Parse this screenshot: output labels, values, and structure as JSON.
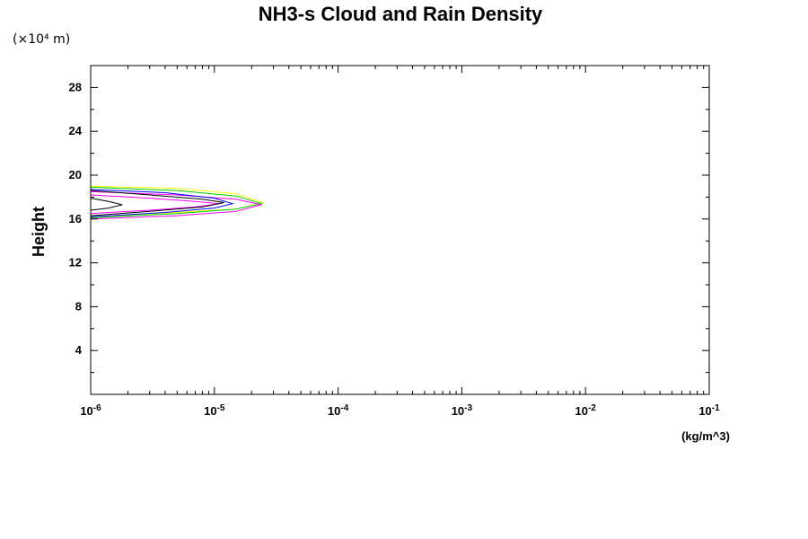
{
  "chart_data": {
    "type": "line",
    "title": "NH3-s Cloud and Rain Density",
    "y_scale_note": "(×10⁴ m)",
    "ylabel": "Height",
    "xlabel": "(kg/m^3)",
    "x_scale": "log",
    "xlim": [
      1e-06,
      0.1
    ],
    "ylim": [
      0,
      30
    ],
    "x_tick_labels": [
      {
        "base": "10",
        "exp": "-6"
      },
      {
        "base": "10",
        "exp": "-5"
      },
      {
        "base": "10",
        "exp": "-4"
      },
      {
        "base": "10",
        "exp": "-3"
      },
      {
        "base": "10",
        "exp": "-2"
      },
      {
        "base": "10",
        "exp": "-1"
      }
    ],
    "y_ticks": [
      "4",
      "8",
      "12",
      "16",
      "20",
      "24",
      "28"
    ],
    "grid": false,
    "legend": "none",
    "series": [
      {
        "color": "#ffff00",
        "points": [
          [
            1e-06,
            19.0
          ],
          [
            5e-06,
            18.8
          ],
          [
            1.5e-05,
            18.3
          ],
          [
            2.5e-05,
            17.5
          ],
          [
            1.5e-05,
            16.9
          ],
          [
            5e-06,
            16.6
          ],
          [
            1e-06,
            16.2
          ]
        ]
      },
      {
        "color": "#00c800",
        "points": [
          [
            1e-06,
            18.9
          ],
          [
            5e-06,
            18.6
          ],
          [
            1.5e-05,
            18.1
          ],
          [
            2.4e-05,
            17.4
          ],
          [
            1.5e-05,
            16.9
          ],
          [
            5e-06,
            16.5
          ],
          [
            1e-06,
            16.1
          ]
        ]
      },
      {
        "color": "#ff00ff",
        "points": [
          [
            1e-06,
            18.5
          ],
          [
            5e-06,
            18.2
          ],
          [
            1.5e-05,
            17.8
          ],
          [
            2.4e-05,
            17.3
          ],
          [
            1.5e-05,
            16.7
          ],
          [
            5e-06,
            16.3
          ],
          [
            1e-06,
            16.0
          ]
        ]
      },
      {
        "color": "#0000ff",
        "points": [
          [
            1e-06,
            18.7
          ],
          [
            4e-06,
            18.4
          ],
          [
            1e-05,
            17.9
          ],
          [
            1.4e-05,
            17.4
          ],
          [
            1e-05,
            17.0
          ],
          [
            4e-06,
            16.6
          ],
          [
            1e-06,
            16.2
          ]
        ]
      },
      {
        "color": "#ff00ff",
        "points": [
          [
            1e-06,
            18.2
          ],
          [
            3e-06,
            17.9
          ],
          [
            7e-06,
            17.6
          ],
          [
            1.1e-05,
            17.4
          ],
          [
            7e-06,
            17.1
          ],
          [
            3e-06,
            16.8
          ],
          [
            1e-06,
            16.5
          ]
        ]
      },
      {
        "color": "#000000",
        "points": [
          [
            1e-06,
            18.6
          ],
          [
            3e-06,
            18.2
          ],
          [
            8e-06,
            17.8
          ],
          [
            1.2e-05,
            17.5
          ],
          [
            8e-06,
            17.1
          ],
          [
            3e-06,
            16.7
          ],
          [
            1e-06,
            16.3
          ]
        ]
      },
      {
        "color": "#000000",
        "points": [
          [
            1e-06,
            17.9
          ],
          [
            1.4e-06,
            17.6
          ],
          [
            1.8e-06,
            17.3
          ],
          [
            1.4e-06,
            17.0
          ],
          [
            1e-06,
            16.8
          ]
        ]
      }
    ]
  }
}
